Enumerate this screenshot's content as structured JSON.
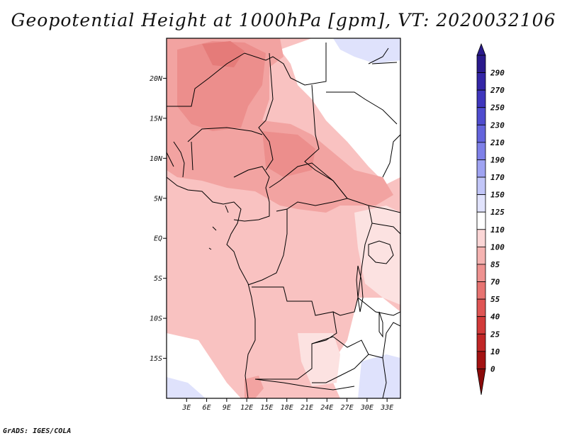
{
  "title": "Geopotential Height at 1000hPa [gpm], VT: 2020032106",
  "footer": "GrADS: IGES/COLA",
  "map": {
    "lat_labels": [
      "20N",
      "15N",
      "10N",
      "5N",
      "EQ",
      "5S",
      "10S",
      "15S"
    ],
    "lat_values": [
      20,
      15,
      10,
      5,
      0,
      -5,
      -10,
      -15
    ],
    "lon_labels": [
      "3E",
      "6E",
      "9E",
      "12E",
      "15E",
      "18E",
      "21E",
      "24E",
      "27E",
      "30E",
      "33E"
    ],
    "lon_values": [
      3,
      6,
      9,
      12,
      15,
      18,
      21,
      24,
      27,
      30,
      33
    ],
    "extent": {
      "lon_min": 0,
      "lon_max": 35,
      "lat_min": -20,
      "lat_max": 25
    }
  },
  "colorbar": {
    "labels": [
      "290",
      "270",
      "250",
      "230",
      "210",
      "190",
      "170",
      "150",
      "125",
      "110",
      "100",
      "85",
      "70",
      "55",
      "40",
      "25",
      "10",
      "0"
    ],
    "colors": [
      "#2a1a8c",
      "#3326a6",
      "#3f36bd",
      "#4f4ccf",
      "#6464dc",
      "#7e80e8",
      "#9fa3f2",
      "#c2c6f8",
      "#e1e3fc",
      "#ffffff",
      "#fbd6d6",
      "#f5b3b1",
      "#ee9290",
      "#e77371",
      "#df5554",
      "#d23a39",
      "#c02626",
      "#a31212",
      "#8a0a0a"
    ]
  }
}
